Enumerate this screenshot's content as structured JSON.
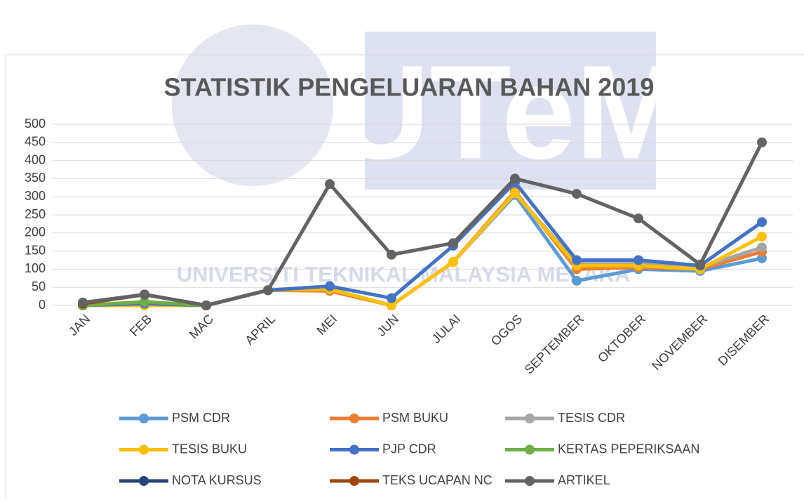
{
  "chart_data": {
    "type": "line",
    "title": "STATISTIK PENGELUARAN BAHAN 2019",
    "watermark": [
      "UTeM",
      "UNIVERSITI TEKNIKAL MALAYSIA MELAKA"
    ],
    "categories": [
      "JAN",
      "FEB",
      "MAC",
      "APRIL",
      "MEI",
      "JUN",
      "JULAI",
      "OGOS",
      "SEPTEMBER",
      "OKTOBER",
      "NOVEMBER",
      "DISEMBER"
    ],
    "ylim": [
      0,
      500
    ],
    "yticks": [
      0,
      50,
      100,
      150,
      200,
      250,
      300,
      350,
      400,
      450,
      500
    ],
    "grid": true,
    "legend": "bottom",
    "series": [
      {
        "name": "PSM CDR",
        "color": "#5b9bd5",
        "values": [
          0,
          5,
          0,
          42,
          45,
          0,
          120,
          305,
          68,
          100,
          95,
          130
        ]
      },
      {
        "name": "PSM BUKU",
        "color": "#ed7d31",
        "values": [
          0,
          0,
          0,
          42,
          40,
          0,
          120,
          315,
          100,
          105,
          100,
          148
        ]
      },
      {
        "name": "TESIS CDR",
        "color": "#a5a5a5",
        "values": [
          0,
          5,
          0,
          42,
          45,
          0,
          120,
          310,
          115,
          115,
          105,
          160
        ]
      },
      {
        "name": "TESIS BUKU",
        "color": "#ffc000",
        "values": [
          0,
          0,
          0,
          42,
          45,
          0,
          120,
          310,
          110,
          110,
          100,
          190
        ]
      },
      {
        "name": "PJP CDR",
        "color": "#4472c4",
        "values": [
          0,
          5,
          0,
          42,
          53,
          20,
          165,
          340,
          125,
          125,
          110,
          230
        ]
      },
      {
        "name": "KERTAS PEPERIKSAAN",
        "color": "#70ad47",
        "values": [
          0,
          10,
          0,
          null,
          null,
          null,
          null,
          null,
          null,
          null,
          null,
          null
        ]
      },
      {
        "name": "NOTA KURSUS",
        "color": "#264478",
        "values": [
          5,
          30,
          0,
          42,
          null,
          null,
          null,
          null,
          null,
          null,
          null,
          null
        ]
      },
      {
        "name": "TEKS UCAPAN NC",
        "color": "#9e480e",
        "values": [
          5,
          30,
          0,
          42,
          null,
          null,
          null,
          null,
          null,
          null,
          null,
          null
        ]
      },
      {
        "name": "ARTIKEL",
        "color": "#636363",
        "values": [
          8,
          30,
          0,
          42,
          335,
          140,
          172,
          350,
          308,
          240,
          113,
          450
        ]
      }
    ]
  }
}
